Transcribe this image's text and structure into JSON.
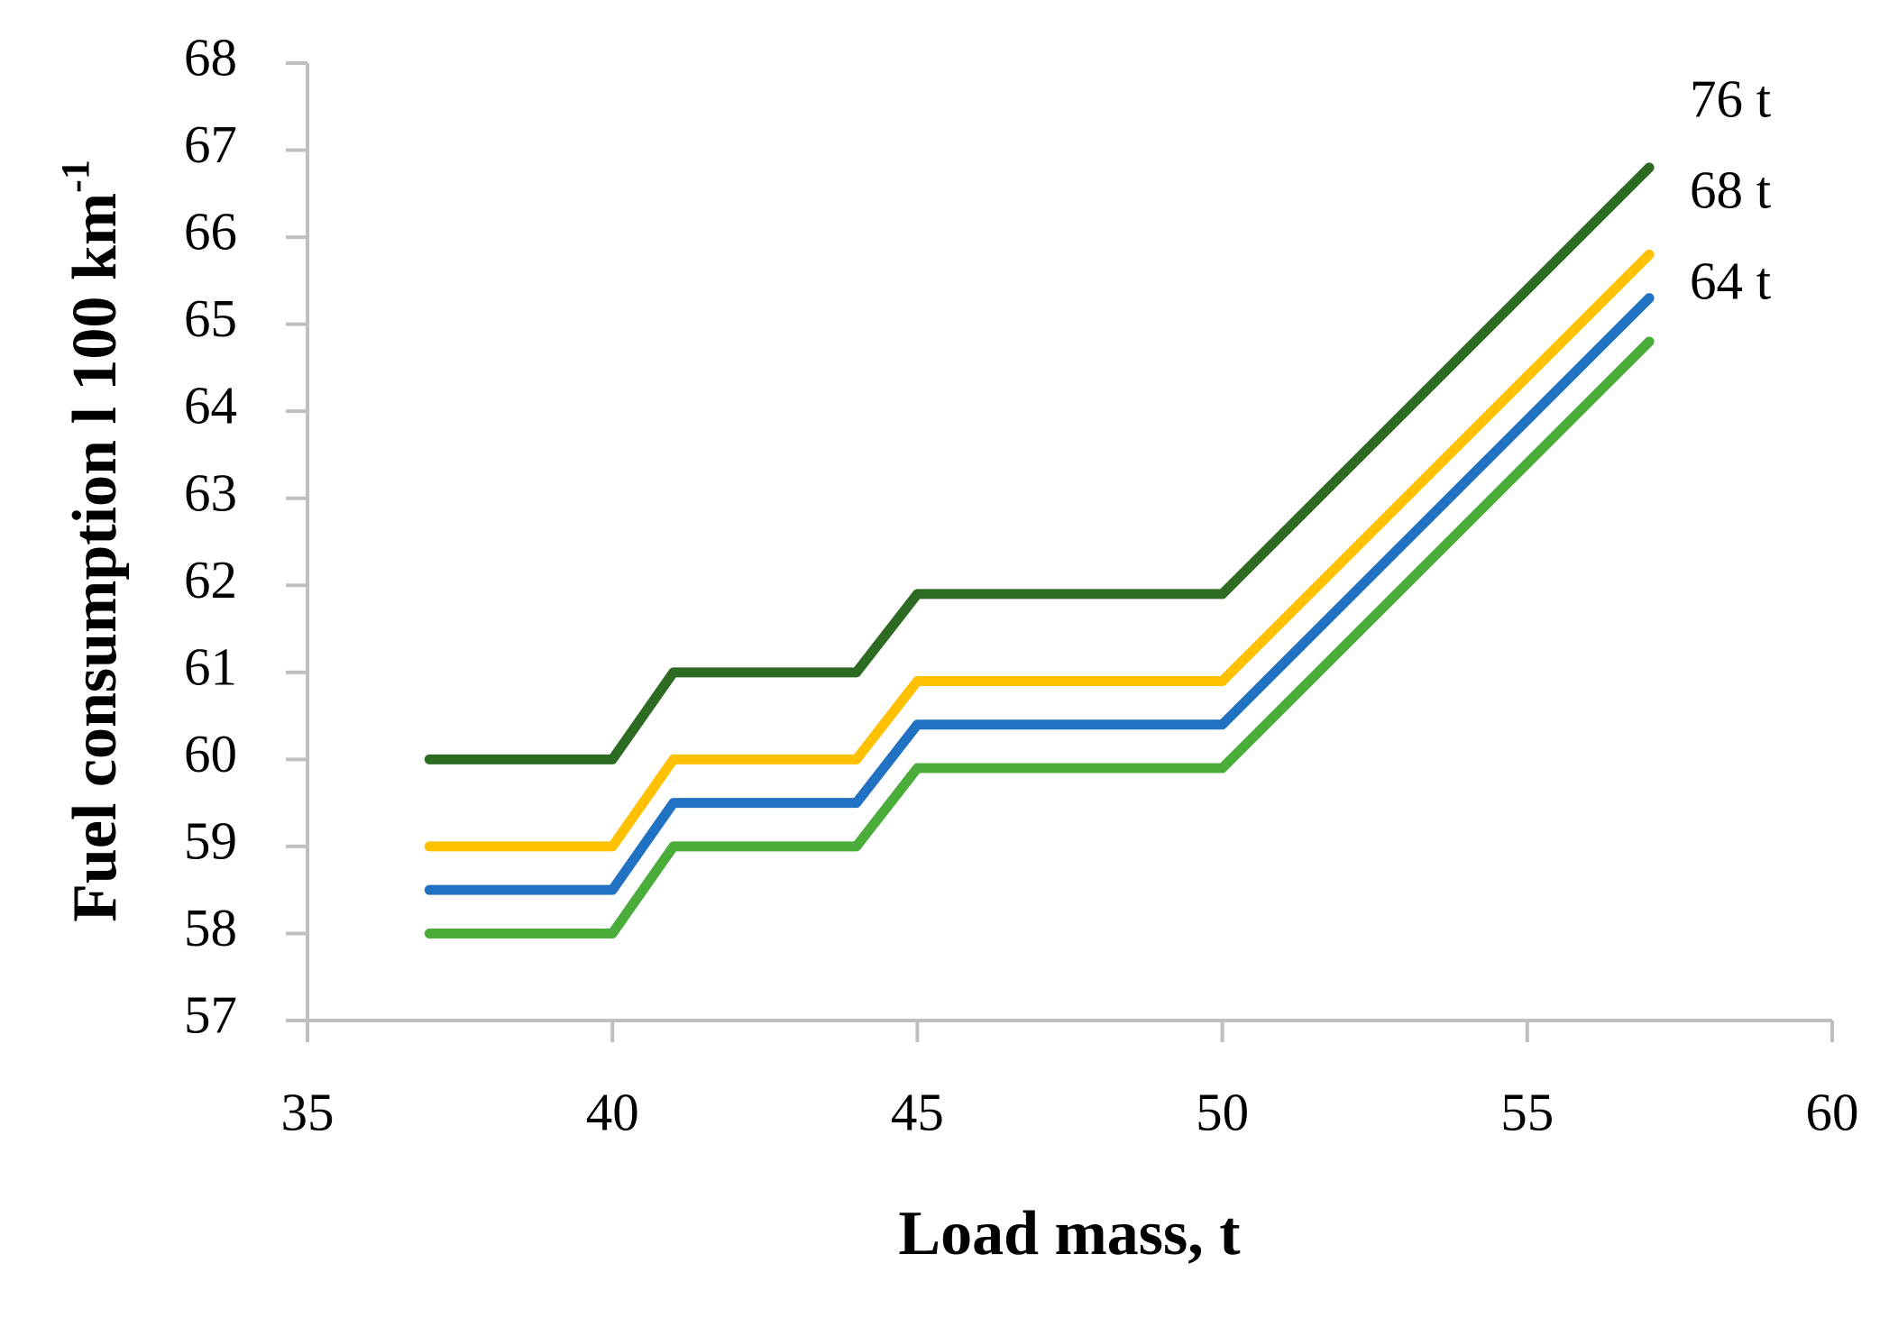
{
  "chart_data": {
    "type": "line",
    "xlabel": "Load mass, t",
    "ylabel": "Fuel consumption l 100 km",
    "ylabel_superscript": "-1",
    "x": [
      37,
      40,
      41,
      44,
      45,
      50,
      57
    ],
    "series": [
      {
        "name": "76 t",
        "color": "#2d6a22",
        "values": [
          60,
          60,
          61,
          61,
          61.9,
          61.9,
          66.8
        ]
      },
      {
        "name": "68 t",
        "color": "#ffc000",
        "values": [
          59,
          59,
          60,
          60,
          60.9,
          60.9,
          65.8
        ]
      },
      {
        "name": "64 t",
        "color": "#2272c4",
        "values": [
          58.5,
          58.5,
          59.5,
          59.5,
          60.4,
          60.4,
          65.3
        ]
      },
      {
        "color": "#4aad3a",
        "values": [
          58,
          58,
          59,
          59,
          59.9,
          59.9,
          64.8
        ]
      }
    ],
    "xlim": [
      35,
      60
    ],
    "xticks": [
      35,
      40,
      45,
      50,
      55,
      60
    ],
    "ylim": [
      57,
      68
    ],
    "yticks": [
      57,
      58,
      59,
      60,
      61,
      62,
      63,
      64,
      65,
      66,
      67,
      68
    ],
    "grid": false
  }
}
